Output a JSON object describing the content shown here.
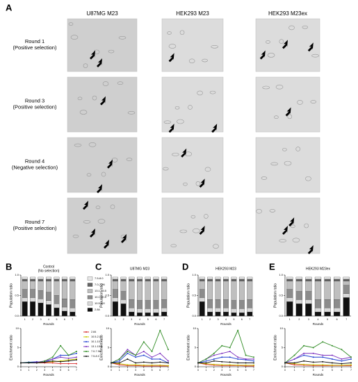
{
  "panel_a": {
    "label": "A",
    "columns": [
      "U87MG M23",
      "HEK293 M23",
      "HEK293 M23ex"
    ],
    "rows": [
      {
        "title": "Round 1",
        "note": "(Positive selection)"
      },
      {
        "title": "Round 3",
        "note": "(Positive selection)"
      },
      {
        "title": "Round 4",
        "note": "(Negative selection)"
      },
      {
        "title": "Round 7",
        "note": "(Positive selection)"
      }
    ]
  },
  "chart_data": [
    {
      "type": "bar",
      "label": "B",
      "title": "Control",
      "subtitle": "(No selection)",
      "ylabel": "Population ratio",
      "xlabel": "Rounds",
      "categories": [
        "1",
        "2",
        "3",
        "4",
        "5",
        "6",
        "7"
      ],
      "ylim": [
        0,
        1
      ],
      "yticks": [
        {
          "value": 0,
          "label": "0.0"
        },
        {
          "value": 0.5,
          "label": "0.5"
        },
        {
          "value": 1,
          "label": "1.0"
        }
      ],
      "series": [
        {
          "name": "2.84",
          "color": "#111111",
          "values": [
            0.35,
            0.35,
            0.32,
            0.28,
            0.2,
            0.12,
            0.1
          ]
        },
        {
          "name": "10.5-2.0",
          "color": "#d9d9d9",
          "values": [
            0.1,
            0.1,
            0.1,
            0.1,
            0.1,
            0.1,
            0.1
          ]
        },
        {
          "name": "10.1-10.5",
          "color": "#8c8c8c",
          "values": [
            0.2,
            0.2,
            0.2,
            0.2,
            0.2,
            0.2,
            0.2
          ]
        },
        {
          "name": "13.1-15.5",
          "color": "#bfbfbf",
          "values": [
            0.2,
            0.2,
            0.23,
            0.27,
            0.35,
            0.43,
            0.45
          ]
        },
        {
          "name": "7.0-7.96",
          "color": "#666666",
          "values": [
            0.05,
            0.05,
            0.05,
            0.05,
            0.05,
            0.05,
            0.05
          ]
        },
        {
          "name": "7.5-8.0",
          "color": "#e8e8e8",
          "values": [
            0.05,
            0.05,
            0.05,
            0.05,
            0.05,
            0.05,
            0.05
          ]
        }
      ]
    },
    {
      "type": "bar",
      "label": "C",
      "title": "U87MG M23",
      "ylabel": "Population ratio",
      "xlabel": "Rounds",
      "categories": [
        "1",
        "2",
        "3",
        "4",
        "5",
        "6",
        "7"
      ],
      "ylim": [
        0,
        1
      ],
      "yticks": [
        {
          "value": 0,
          "label": "0.0"
        },
        {
          "value": 0.5,
          "label": "0.5"
        },
        {
          "value": 1,
          "label": "1.0"
        }
      ],
      "series": [
        {
          "color": "#111111",
          "values": [
            0.35,
            0.3,
            0.1,
            0.08,
            0.08,
            0.08,
            0.1
          ]
        },
        {
          "color": "#d9d9d9",
          "values": [
            0.1,
            0.1,
            0.1,
            0.1,
            0.1,
            0.1,
            0.1
          ]
        },
        {
          "color": "#8c8c8c",
          "values": [
            0.2,
            0.2,
            0.2,
            0.2,
            0.2,
            0.2,
            0.2
          ]
        },
        {
          "color": "#bfbfbf",
          "values": [
            0.2,
            0.25,
            0.45,
            0.47,
            0.47,
            0.47,
            0.45
          ]
        },
        {
          "color": "#666666",
          "values": [
            0.05,
            0.05,
            0.05,
            0.05,
            0.05,
            0.05,
            0.05
          ]
        },
        {
          "color": "#e8e8e8",
          "values": [
            0.05,
            0.05,
            0.05,
            0.05,
            0.05,
            0.05,
            0.05
          ]
        }
      ]
    },
    {
      "type": "bar",
      "label": "D",
      "title": "HEK293 M23",
      "ylabel": "Population ratio",
      "xlabel": "Rounds",
      "categories": [
        "1",
        "2",
        "3",
        "4",
        "5",
        "6",
        "7"
      ],
      "ylim": [
        0,
        1
      ],
      "yticks": [
        {
          "value": 0,
          "label": "0.0"
        },
        {
          "value": 0.5,
          "label": "0.5"
        },
        {
          "value": 1,
          "label": "1.0"
        }
      ],
      "series": [
        {
          "color": "#111111",
          "values": [
            0.35,
            0.1,
            0.1,
            0.1,
            0.08,
            0.08,
            0.1
          ]
        },
        {
          "color": "#d9d9d9",
          "values": [
            0.1,
            0.1,
            0.1,
            0.1,
            0.1,
            0.1,
            0.1
          ]
        },
        {
          "color": "#8c8c8c",
          "values": [
            0.2,
            0.2,
            0.2,
            0.2,
            0.2,
            0.2,
            0.2
          ]
        },
        {
          "color": "#bfbfbf",
          "values": [
            0.2,
            0.45,
            0.45,
            0.45,
            0.47,
            0.47,
            0.45
          ]
        },
        {
          "color": "#666666",
          "values": [
            0.05,
            0.05,
            0.05,
            0.05,
            0.05,
            0.05,
            0.05
          ]
        },
        {
          "color": "#e8e8e8",
          "values": [
            0.05,
            0.05,
            0.05,
            0.05,
            0.05,
            0.05,
            0.05
          ]
        }
      ]
    },
    {
      "type": "bar",
      "label": "E",
      "title": "HEK293 M23ex",
      "ylabel": "Population ratio",
      "xlabel": "Rounds",
      "categories": [
        "1",
        "2",
        "3",
        "4",
        "5",
        "6",
        "7"
      ],
      "ylim": [
        0,
        1
      ],
      "yticks": [
        {
          "value": 0,
          "label": "0.0"
        },
        {
          "value": 0.5,
          "label": "0.5"
        },
        {
          "value": 1,
          "label": "1.0"
        }
      ],
      "series": [
        {
          "color": "#111111",
          "values": [
            0.35,
            0.3,
            0.3,
            0.1,
            0.1,
            0.1,
            0.45
          ]
        },
        {
          "color": "#d9d9d9",
          "values": [
            0.1,
            0.1,
            0.1,
            0.1,
            0.1,
            0.1,
            0.1
          ]
        },
        {
          "color": "#8c8c8c",
          "values": [
            0.2,
            0.2,
            0.2,
            0.2,
            0.2,
            0.2,
            0.2
          ]
        },
        {
          "color": "#bfbfbf",
          "values": [
            0.2,
            0.25,
            0.25,
            0.45,
            0.45,
            0.45,
            0.1
          ]
        },
        {
          "color": "#666666",
          "values": [
            0.05,
            0.05,
            0.05,
            0.05,
            0.05,
            0.05,
            0.05
          ]
        },
        {
          "color": "#e8e8e8",
          "values": [
            0.05,
            0.05,
            0.05,
            0.05,
            0.05,
            0.05,
            0.05
          ]
        }
      ]
    },
    {
      "type": "line",
      "ylabel": "Enrichment ratio",
      "xlabel": "Rounds",
      "x": [
        0,
        1,
        2,
        3,
        4,
        5,
        6,
        7
      ],
      "xlim": [
        0,
        7
      ],
      "ylim": [
        0,
        10
      ],
      "yticks": [
        0,
        5,
        10
      ],
      "series": [
        {
          "name": "2.84",
          "color": "#d62728",
          "values": [
            1,
            1,
            1,
            1,
            1,
            0.8,
            0.8,
            0.8
          ]
        },
        {
          "name": "10.5-2.0",
          "color": "#c8c800",
          "values": [
            1,
            1.1,
            1,
            1.2,
            1.3,
            1.5,
            1.8,
            2
          ]
        },
        {
          "name": "10.1-10.5",
          "color": "#1f3fd0",
          "values": [
            1,
            1.2,
            1.3,
            1.2,
            2,
            3,
            3,
            3.5
          ]
        },
        {
          "name": "13.1-15.5",
          "color": "#7b2fbe",
          "values": [
            1,
            1,
            1.2,
            1.5,
            2,
            2.5,
            2.2,
            2.5
          ]
        },
        {
          "name": "7.0-7.96",
          "color": "#2e8b22",
          "values": [
            1,
            1.1,
            1,
            1.5,
            2.5,
            5.5,
            3,
            4
          ]
        },
        {
          "name": "7.5-8.0",
          "color": "#111111",
          "values": [
            1,
            1,
            1,
            1.2,
            1.5,
            1.3,
            1.5,
            1.8
          ]
        }
      ]
    },
    {
      "type": "line",
      "ylabel": "Enrichment ratio",
      "xlabel": "Rounds",
      "x": [
        0,
        1,
        2,
        3,
        4,
        5,
        6,
        7
      ],
      "xlim": [
        0,
        7
      ],
      "ylim": [
        0,
        10
      ],
      "yticks": [
        0,
        5,
        10
      ],
      "series": [
        {
          "color": "#d62728",
          "values": [
            1,
            0.5,
            0.3,
            0.3,
            0.2,
            0.2,
            0.2,
            0.2
          ]
        },
        {
          "color": "#c8c800",
          "values": [
            1,
            0.8,
            0.5,
            0.5,
            0.4,
            0.4,
            0.4,
            0.3
          ]
        },
        {
          "color": "#1f3fd0",
          "values": [
            1,
            1.5,
            3.5,
            2.5,
            3,
            2,
            2,
            1
          ]
        },
        {
          "color": "#7b2fbe",
          "values": [
            1,
            2,
            4.5,
            3,
            4,
            2.5,
            3.5,
            1.5
          ]
        },
        {
          "color": "#2e8b22",
          "values": [
            1,
            2,
            4,
            3,
            6.5,
            4,
            9.5,
            4.5
          ]
        },
        {
          "color": "#111111",
          "values": [
            1,
            1,
            2,
            1,
            1.2,
            1,
            1.2,
            1
          ]
        }
      ]
    },
    {
      "type": "line",
      "ylabel": "Enrichment ratio",
      "xlabel": "Rounds",
      "x": [
        0,
        1,
        2,
        3,
        4,
        5,
        6,
        7
      ],
      "xlim": [
        0,
        7
      ],
      "ylim": [
        0,
        10
      ],
      "yticks": [
        0,
        5,
        10
      ],
      "series": [
        {
          "color": "#d62728",
          "values": [
            1,
            0.6,
            0.4,
            0.3,
            0.3,
            0.3,
            0.2,
            0.2
          ]
        },
        {
          "color": "#c8c800",
          "values": [
            1,
            0.8,
            0.6,
            0.5,
            0.5,
            0.4,
            0.4,
            0.4
          ]
        },
        {
          "color": "#1f3fd0",
          "values": [
            1,
            1.5,
            2,
            2.5,
            2.5,
            2,
            1.8,
            1.5
          ]
        },
        {
          "color": "#7b2fbe",
          "values": [
            1,
            2,
            3,
            3.5,
            4,
            2.5,
            2,
            2
          ]
        },
        {
          "color": "#2e8b22",
          "values": [
            1,
            2,
            3.5,
            5.5,
            5,
            9.5,
            3,
            2.5
          ]
        },
        {
          "color": "#111111",
          "values": [
            1,
            1,
            1.5,
            1.3,
            1.2,
            1,
            1,
            1
          ]
        }
      ]
    },
    {
      "type": "line",
      "ylabel": "Enrichment ratio",
      "xlabel": "Rounds",
      "x": [
        0,
        1,
        2,
        3,
        4,
        5,
        6,
        7
      ],
      "xlim": [
        0,
        7
      ],
      "ylim": [
        0,
        10
      ],
      "yticks": [
        0,
        5,
        10
      ],
      "series": [
        {
          "color": "#d62728",
          "values": [
            1,
            0.5,
            0.4,
            0.3,
            0.3,
            0.3,
            0.3,
            0.3
          ]
        },
        {
          "color": "#c8c800",
          "values": [
            1,
            0.8,
            0.6,
            0.5,
            0.5,
            0.4,
            0.4,
            0.5
          ]
        },
        {
          "color": "#1f3fd0",
          "values": [
            1,
            2,
            3,
            2.5,
            2.5,
            2,
            1.5,
            2
          ]
        },
        {
          "color": "#7b2fbe",
          "values": [
            1,
            2,
            3.5,
            3.5,
            3,
            3,
            2,
            2.5
          ]
        },
        {
          "color": "#2e8b22",
          "values": [
            1,
            3,
            5.5,
            5,
            6.5,
            5.5,
            4.5,
            2.5
          ]
        },
        {
          "color": "#111111",
          "values": [
            1,
            1,
            1.5,
            1.2,
            1.3,
            1,
            0.8,
            1
          ]
        }
      ]
    }
  ]
}
